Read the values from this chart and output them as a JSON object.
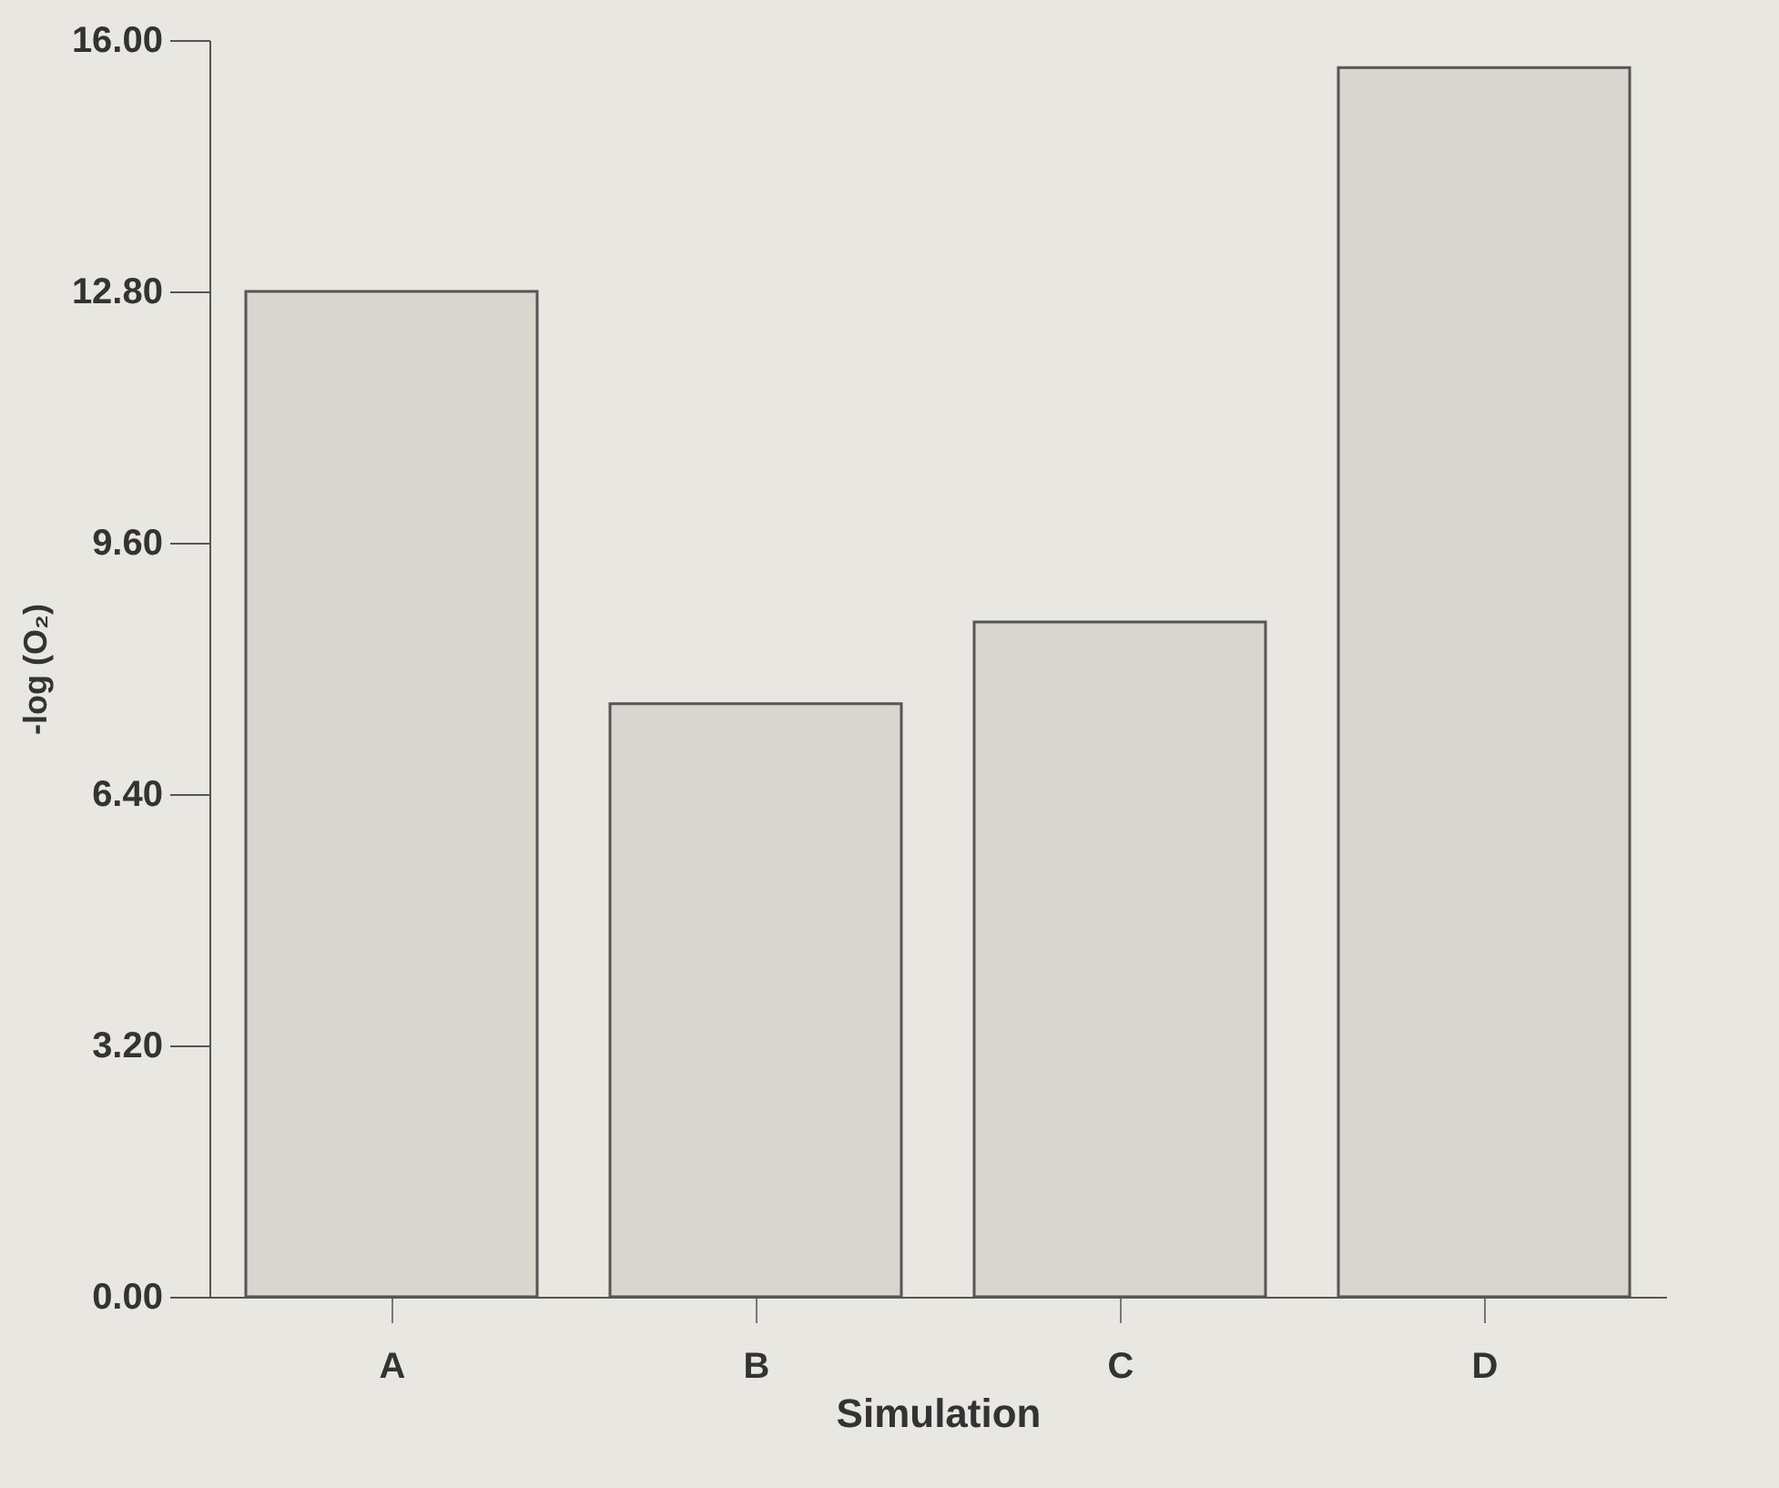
{
  "chart_data": {
    "type": "bar",
    "xlabel": "Simulation",
    "ylabel": "-log (O₂)",
    "categories": [
      "A",
      "B",
      "C",
      "D"
    ],
    "values": [
      12.8,
      7.55,
      8.59,
      15.65
    ],
    "color": "#d9d6cf",
    "ylim": [
      0,
      16
    ],
    "yticks": [
      {
        "value": 0,
        "label": "0.00"
      },
      {
        "value": 3.2,
        "label": "3.20"
      },
      {
        "value": 6.4,
        "label": "6.40"
      },
      {
        "value": 9.6,
        "label": "9.60"
      },
      {
        "value": 12.8,
        "label": "12.80"
      },
      {
        "value": 16,
        "label": "16.00"
      }
    ],
    "grid": false
  }
}
